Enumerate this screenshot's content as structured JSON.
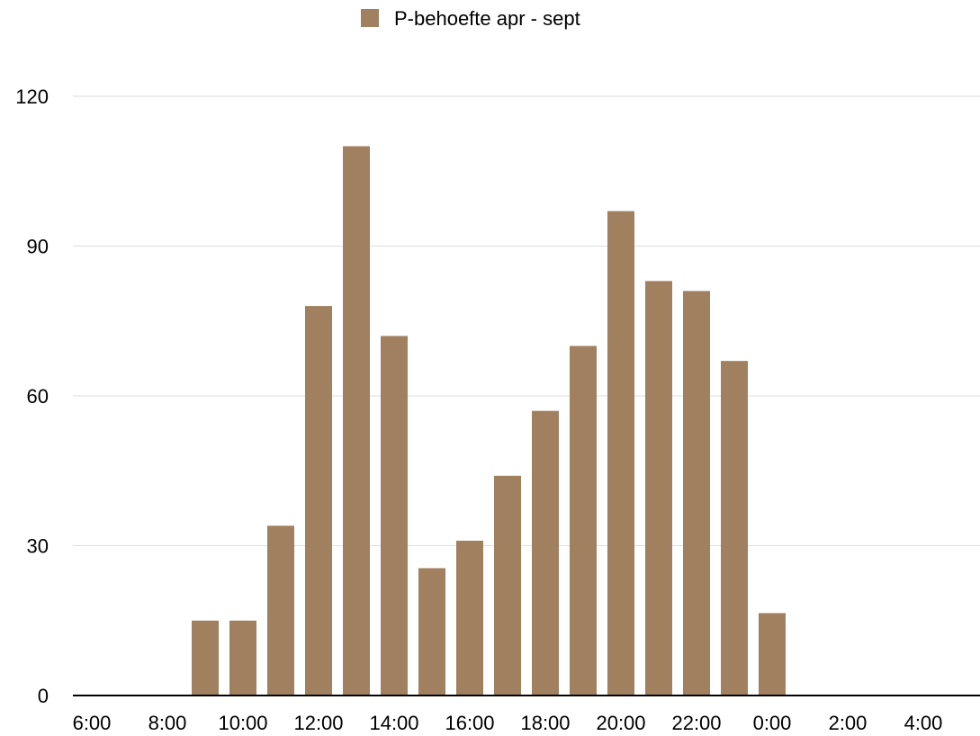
{
  "chart_data": {
    "type": "bar",
    "title": "",
    "xlabel": "",
    "ylabel": "",
    "legend": {
      "placement": "top-center",
      "entries": [
        {
          "label": "P-behoefte apr - sept",
          "color": "#a0805f"
        }
      ]
    },
    "x_tick_labels": [
      "6:00",
      "8:00",
      "10:00",
      "12:00",
      "14:00",
      "16:00",
      "18:00",
      "20:00",
      "22:00",
      "0:00",
      "2:00",
      "4:00"
    ],
    "categories": [
      "6:00",
      "7:00",
      "8:00",
      "9:00",
      "10:00",
      "11:00",
      "12:00",
      "13:00",
      "14:00",
      "15:00",
      "16:00",
      "17:00",
      "18:00",
      "19:00",
      "20:00",
      "21:00",
      "22:00",
      "23:00",
      "0:00",
      "1:00",
      "2:00",
      "3:00",
      "4:00",
      "5:00"
    ],
    "series": [
      {
        "name": "P-behoefte apr - sept",
        "color": "#a0805f",
        "values": [
          0,
          0,
          0,
          15,
          15,
          34,
          78,
          110,
          72,
          25.5,
          31,
          44,
          57,
          70,
          97,
          83,
          81,
          67,
          16.5,
          0,
          0,
          0,
          0,
          0
        ]
      }
    ],
    "y_ticks": [
      0,
      30,
      60,
      90,
      120
    ],
    "ylim": [
      0,
      120
    ],
    "grid": true,
    "colors": {
      "grid": "#dddddd",
      "axis": "#000000"
    }
  }
}
